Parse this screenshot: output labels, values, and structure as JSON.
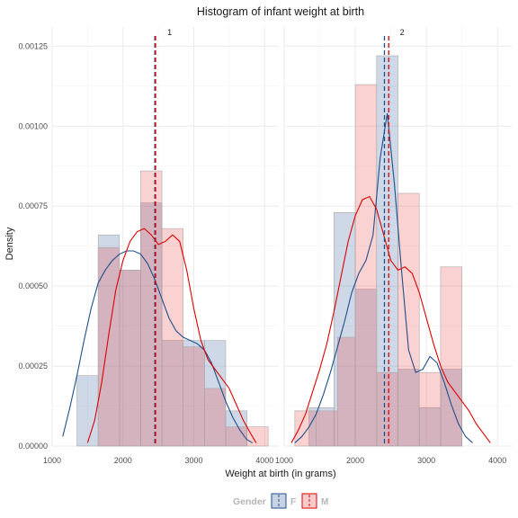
{
  "chart_data": {
    "type": "histogram",
    "title": "Histogram of infant weight at birth",
    "xlabel": "Weight at birth (in grams)",
    "ylabel": "Density",
    "xlim": [
      1000,
      4200
    ],
    "ylim": [
      0,
      0.00131
    ],
    "x_ticks": [
      1000,
      2000,
      3000,
      4000
    ],
    "y_ticks": [
      0,
      0.00025,
      0.0005,
      0.00075,
      0.001,
      0.00125
    ],
    "y_tick_labels": [
      "0.00000",
      "0.00025",
      "0.00050",
      "0.00075",
      "0.00100",
      "0.00125"
    ],
    "x_tick_labels": [
      "1000",
      "2000",
      "3000",
      "4000"
    ],
    "grid": true,
    "legend": {
      "title": "Gender",
      "position": "bottom",
      "entries": [
        {
          "label": "F",
          "fill": "#1f4e8c",
          "line": "#1f4e8c"
        },
        {
          "label": "M",
          "fill": "#ee3333",
          "line": "#dd0000"
        }
      ]
    },
    "panels": [
      {
        "label": "1",
        "series": [
          {
            "name": "F",
            "bins": [
              {
                "x0": 1350,
                "x1": 1650,
                "density": 0.00022
              },
              {
                "x0": 1650,
                "x1": 1950,
                "density": 0.00066
              },
              {
                "x0": 1950,
                "x1": 2250,
                "density": 0.00055
              },
              {
                "x0": 2250,
                "x1": 2550,
                "density": 0.00076
              },
              {
                "x0": 2550,
                "x1": 2850,
                "density": 0.00033
              },
              {
                "x0": 2850,
                "x1": 3150,
                "density": 0.00033
              },
              {
                "x0": 3150,
                "x1": 3450,
                "density": 0.00033
              },
              {
                "x0": 3450,
                "x1": 3750,
                "density": 0.00011
              }
            ],
            "density_curve": [
              [
                1150,
                3e-05
              ],
              [
                1250,
                0.00012
              ],
              [
                1350,
                0.00022
              ],
              [
                1450,
                0.00033
              ],
              [
                1550,
                0.00043
              ],
              [
                1650,
                0.00051
              ],
              [
                1750,
                0.00055
              ],
              [
                1850,
                0.00058
              ],
              [
                1950,
                0.0006
              ],
              [
                2050,
                0.00061
              ],
              [
                2150,
                0.00061
              ],
              [
                2250,
                0.0006
              ],
              [
                2350,
                0.00057
              ],
              [
                2450,
                0.00052
              ],
              [
                2550,
                0.00046
              ],
              [
                2650,
                0.0004
              ],
              [
                2750,
                0.00036
              ],
              [
                2850,
                0.00034
              ],
              [
                2950,
                0.00033
              ],
              [
                3050,
                0.00032
              ],
              [
                3150,
                0.0003
              ],
              [
                3250,
                0.00026
              ],
              [
                3350,
                0.0002
              ],
              [
                3450,
                0.00014
              ],
              [
                3550,
                9e-05
              ],
              [
                3650,
                5e-05
              ],
              [
                3750,
                2e-05
              ],
              [
                3830,
                1e-05
              ]
            ],
            "mean": 2450
          },
          {
            "name": "M",
            "bins": [
              {
                "x0": 1650,
                "x1": 1950,
                "density": 0.00062
              },
              {
                "x0": 1950,
                "x1": 2250,
                "density": 0.00055
              },
              {
                "x0": 2250,
                "x1": 2550,
                "density": 0.00086
              },
              {
                "x0": 2550,
                "x1": 2850,
                "density": 0.00068
              },
              {
                "x0": 2850,
                "x1": 3150,
                "density": 0.00031
              },
              {
                "x0": 3150,
                "x1": 3450,
                "density": 0.00018
              },
              {
                "x0": 3450,
                "x1": 3750,
                "density": 6e-05
              },
              {
                "x0": 3750,
                "x1": 4050,
                "density": 6e-05
              }
            ],
            "density_curve": [
              [
                1500,
                1e-05
              ],
              [
                1600,
                8e-05
              ],
              [
                1700,
                0.0002
              ],
              [
                1800,
                0.00035
              ],
              [
                1900,
                0.00049
              ],
              [
                2000,
                0.00058
              ],
              [
                2100,
                0.00064
              ],
              [
                2200,
                0.00067
              ],
              [
                2300,
                0.00068
              ],
              [
                2400,
                0.00066
              ],
              [
                2500,
                0.00063
              ],
              [
                2600,
                0.00064
              ],
              [
                2700,
                0.00066
              ],
              [
                2800,
                0.00064
              ],
              [
                2900,
                0.00055
              ],
              [
                3000,
                0.00043
              ],
              [
                3100,
                0.00033
              ],
              [
                3200,
                0.00027
              ],
              [
                3300,
                0.00024
              ],
              [
                3400,
                0.00021
              ],
              [
                3500,
                0.00018
              ],
              [
                3600,
                0.00013
              ],
              [
                3700,
                8e-05
              ],
              [
                3800,
                4e-05
              ],
              [
                3880,
                1e-05
              ]
            ],
            "mean": 2460
          }
        ]
      },
      {
        "label": "2",
        "series": [
          {
            "name": "F",
            "bins": [
              {
                "x0": 1350,
                "x1": 1700,
                "density": 0.00012
              },
              {
                "x0": 1700,
                "x1": 2000,
                "density": 0.00073
              },
              {
                "x0": 2000,
                "x1": 2300,
                "density": 0.00049
              },
              {
                "x0": 2300,
                "x1": 2600,
                "density": 0.00122
              },
              {
                "x0": 2600,
                "x1": 2900,
                "density": 0.00024
              },
              {
                "x0": 2900,
                "x1": 3200,
                "density": 0.00012
              },
              {
                "x0": 3200,
                "x1": 3500,
                "density": 0.00024
              }
            ],
            "density_curve": [
              [
                1150,
                1e-05
              ],
              [
                1250,
                3e-05
              ],
              [
                1350,
                6e-05
              ],
              [
                1450,
                0.0001
              ],
              [
                1550,
                0.00016
              ],
              [
                1650,
                0.00023
              ],
              [
                1750,
                0.00031
              ],
              [
                1850,
                0.00039
              ],
              [
                1950,
                0.00048
              ],
              [
                2050,
                0.00054
              ],
              [
                2150,
                0.00058
              ],
              [
                2250,
                0.00066
              ],
              [
                2350,
                0.0009
              ],
              [
                2450,
                0.00104
              ],
              [
                2550,
                0.00082
              ],
              [
                2650,
                0.00055
              ],
              [
                2750,
                0.0003
              ],
              [
                2850,
                0.00023
              ],
              [
                2950,
                0.00024
              ],
              [
                3050,
                0.00028
              ],
              [
                3150,
                0.00026
              ],
              [
                3250,
                0.0002
              ],
              [
                3350,
                0.00013
              ],
              [
                3450,
                7e-05
              ],
              [
                3550,
                3e-05
              ],
              [
                3650,
                1e-05
              ]
            ],
            "mean": 2410
          },
          {
            "name": "M",
            "bins": [
              {
                "x0": 1150,
                "x1": 1450,
                "density": 0.00011
              },
              {
                "x0": 1450,
                "x1": 1750,
                "density": 0.00011
              },
              {
                "x0": 1750,
                "x1": 2000,
                "density": 0.00034
              },
              {
                "x0": 2000,
                "x1": 2300,
                "density": 0.00113
              },
              {
                "x0": 2300,
                "x1": 2600,
                "density": 0.00023
              },
              {
                "x0": 2600,
                "x1": 2900,
                "density": 0.00079
              },
              {
                "x0": 2900,
                "x1": 3200,
                "density": 0.00023
              },
              {
                "x0": 3200,
                "x1": 3500,
                "density": 0.00056
              }
            ],
            "density_curve": [
              [
                1100,
                1e-05
              ],
              [
                1200,
                5e-05
              ],
              [
                1300,
                0.0001
              ],
              [
                1400,
                0.00017
              ],
              [
                1500,
                0.00024
              ],
              [
                1600,
                0.00032
              ],
              [
                1700,
                0.00042
              ],
              [
                1800,
                0.00053
              ],
              [
                1900,
                0.00064
              ],
              [
                2000,
                0.00072
              ],
              [
                2100,
                0.00077
              ],
              [
                2200,
                0.00078
              ],
              [
                2300,
                0.00074
              ],
              [
                2400,
                0.00066
              ],
              [
                2500,
                0.00058
              ],
              [
                2600,
                0.00055
              ],
              [
                2700,
                0.00056
              ],
              [
                2800,
                0.00054
              ],
              [
                2900,
                0.00048
              ],
              [
                3000,
                0.0004
              ],
              [
                3100,
                0.00032
              ],
              [
                3200,
                0.00025
              ],
              [
                3300,
                0.0002
              ],
              [
                3400,
                0.00017
              ],
              [
                3500,
                0.00014
              ],
              [
                3600,
                0.00011
              ],
              [
                3700,
                7e-05
              ],
              [
                3800,
                4e-05
              ],
              [
                3900,
                1e-05
              ]
            ],
            "mean": 2470
          }
        ]
      }
    ]
  }
}
